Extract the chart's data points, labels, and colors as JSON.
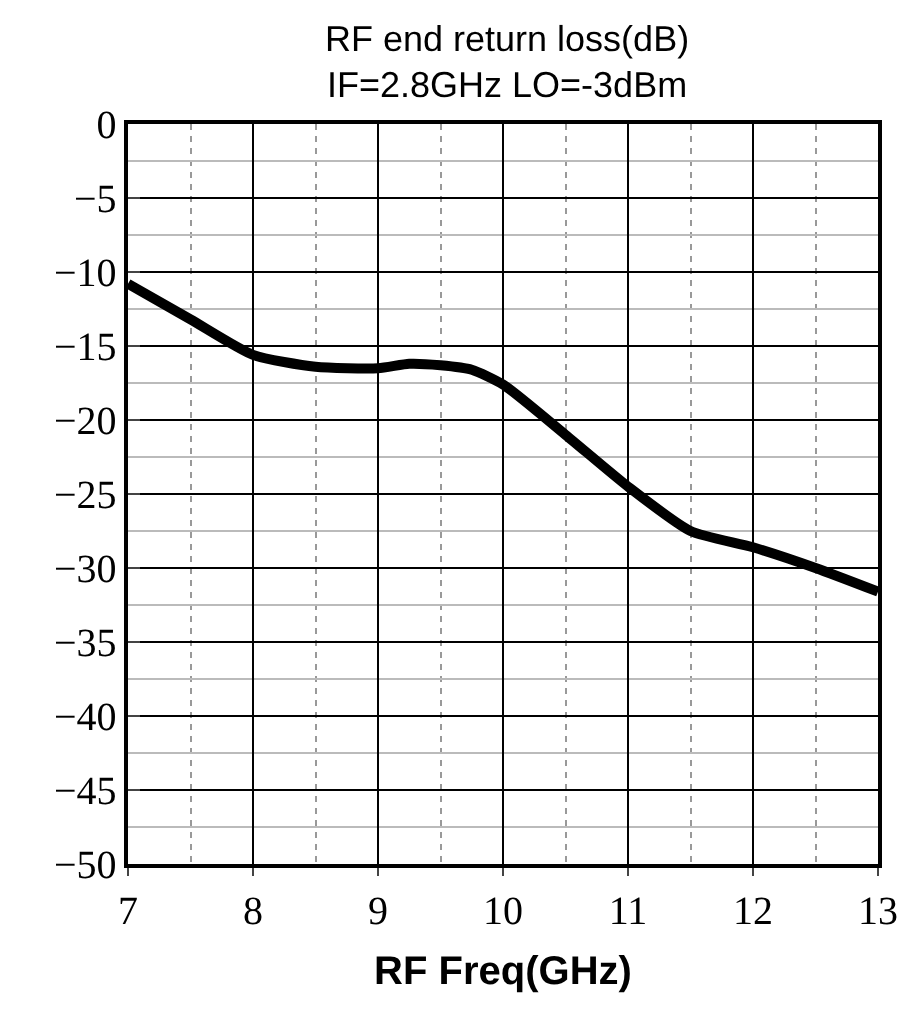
{
  "chart_data": {
    "type": "line",
    "title": "RF end return loss(dB)",
    "subtitle": "IF=2.8GHz LO=-3dBm",
    "xlabel": "RF Freq(GHz)",
    "x": [
      7,
      7.5,
      8,
      8.5,
      9,
      9.25,
      9.5,
      9.75,
      10,
      10.5,
      11,
      11.5,
      12,
      12.5,
      13
    ],
    "series": [
      {
        "color": "#000000",
        "values": [
          -10.8,
          -13.2,
          -15.6,
          -16.4,
          -16.5,
          -16.2,
          -16.3,
          -16.6,
          -17.6,
          -21,
          -24.5,
          -27.5,
          -28.6,
          -30,
          -31.6
        ]
      }
    ],
    "xlim": [
      7,
      13
    ],
    "xticks": [
      7,
      8,
      9,
      10,
      11,
      12,
      13
    ],
    "ylim": [
      -50,
      0
    ],
    "yticks": [
      0,
      -5,
      -10,
      -15,
      -20,
      -25,
      -30,
      -35,
      -40,
      -45,
      -50
    ],
    "grid": true,
    "marker": "none",
    "line_style": "solid"
  }
}
